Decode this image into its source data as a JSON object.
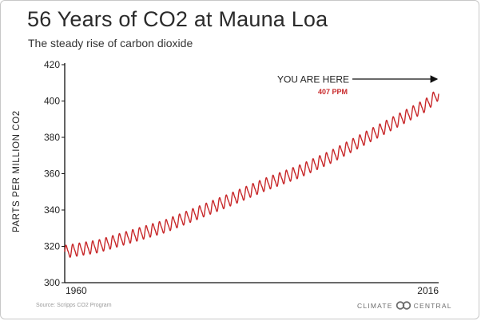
{
  "chart_data": {
    "type": "line",
    "title": "56 Years of CO2 at Mauna Loa",
    "subtitle": "The steady rise of carbon dioxide",
    "ylabel": "PARTS PER MILLION CO2",
    "xlabel": "",
    "x_range": [
      1960,
      2016
    ],
    "x_ticks": [
      "1960",
      "2016"
    ],
    "ylim": [
      300,
      420
    ],
    "y_ticks": [
      300,
      320,
      340,
      360,
      380,
      400,
      420
    ],
    "grid": false,
    "series": [
      {
        "color": "#c8282a",
        "trend": [
          {
            "year": 1960,
            "ppm": 317
          },
          {
            "year": 1965,
            "ppm": 320
          },
          {
            "year": 1970,
            "ppm": 325.5
          },
          {
            "year": 1975,
            "ppm": 331
          },
          {
            "year": 1980,
            "ppm": 338.5
          },
          {
            "year": 1985,
            "ppm": 346
          },
          {
            "year": 1990,
            "ppm": 354
          },
          {
            "year": 1995,
            "ppm": 361
          },
          {
            "year": 2000,
            "ppm": 369.5
          },
          {
            "year": 2005,
            "ppm": 379.5
          },
          {
            "year": 2010,
            "ppm": 389.5
          },
          {
            "year": 2014,
            "ppm": 397.5
          },
          {
            "year": 2016,
            "ppm": 404
          }
        ],
        "seasonal_amplitude_ppm": 3.2
      }
    ],
    "annotation": {
      "label": "YOU ARE HERE",
      "value_label": "407 PPM",
      "value_color": "#c8282a",
      "points_to": {
        "year": 2016,
        "ppm": 409
      }
    }
  },
  "footer": {
    "source": "Source: Scripps CO2 Program",
    "logo_left": "CLIMATE",
    "logo_right": "CENTRAL"
  }
}
